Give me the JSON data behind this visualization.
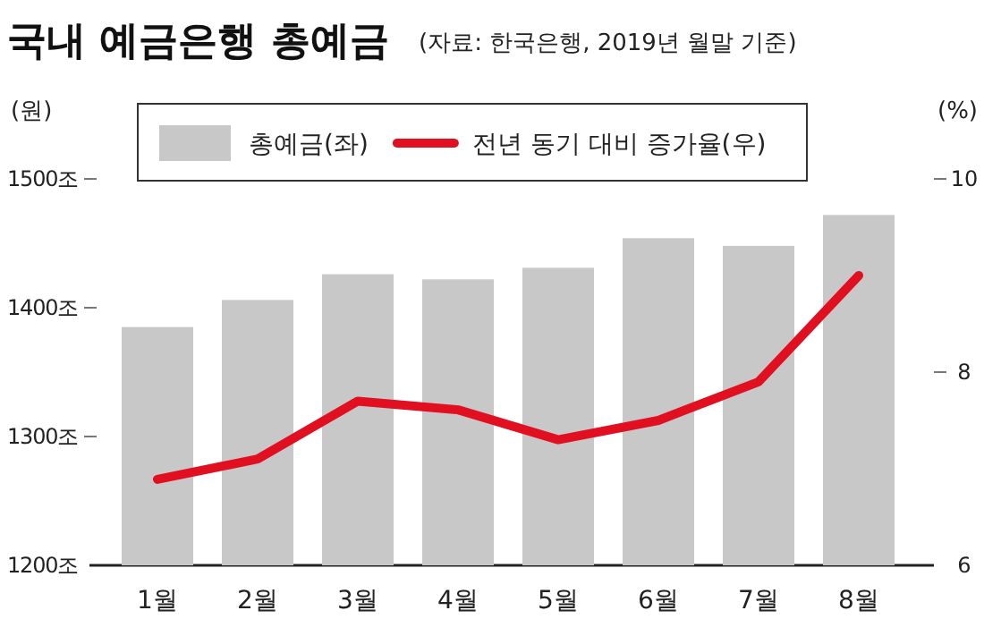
{
  "chart_data": {
    "type": "bar",
    "title": "국내 예금은행 총예금",
    "subtitle": "(자료: 한국은행, 2019년 월말 기준)",
    "ylabel": "(원)",
    "y2label": "(%)",
    "categories": [
      "1월",
      "2월",
      "3월",
      "4월",
      "5월",
      "6월",
      "7월",
      "8월"
    ],
    "series": [
      {
        "name": "총예금(좌)",
        "color": "#c8c8c8",
        "values": [
          1385,
          1406,
          1426,
          1422,
          1431,
          1454,
          1448,
          1472
        ]
      },
      {
        "name": "전년 동기 대비 증가율(우)",
        "type": "line",
        "axis": "y2",
        "color": "#e01020",
        "values": [
          6.89,
          7.1,
          7.7,
          7.61,
          7.3,
          7.5,
          7.9,
          9.0
        ]
      }
    ],
    "ylim": [
      1200,
      1500
    ],
    "yticks": [
      {
        "value": 1200,
        "label": "1200조"
      },
      {
        "value": 1300,
        "label": "1300조"
      },
      {
        "value": 1400,
        "label": "1400조"
      },
      {
        "value": 1500,
        "label": "1500조"
      }
    ],
    "y2lim": [
      6,
      10
    ],
    "y2ticks": [
      6,
      8,
      10
    ],
    "legend": "top",
    "marker": "none",
    "line_style": "solid"
  }
}
